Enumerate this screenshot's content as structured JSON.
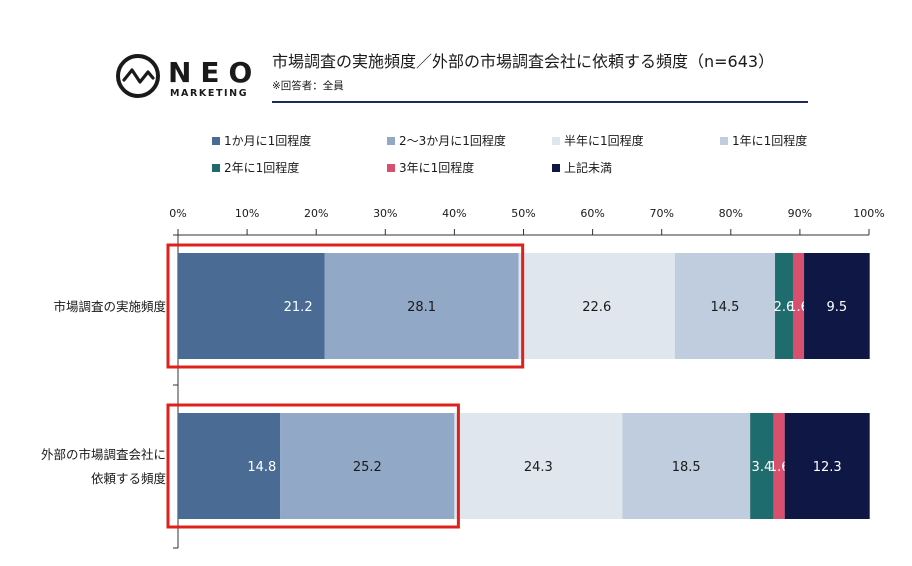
{
  "logo": {
    "word": "NEO",
    "sub": "MARKETING"
  },
  "header": {
    "title": "市場調査の実施頻度／外部の市場調査会社に依頼する頻度（n=643）",
    "note": "※回答者：全員"
  },
  "chart_data": {
    "type": "bar",
    "orientation": "horizontal",
    "stacked": true,
    "percent": true,
    "xlim": [
      0,
      100
    ],
    "ticks": [
      "0%",
      "10%",
      "20%",
      "30%",
      "40%",
      "50%",
      "60%",
      "70%",
      "80%",
      "90%",
      "100%"
    ],
    "legend_position": "top",
    "categories": [
      [
        "市場調査の実施頻度"
      ],
      [
        "外部の市場調査会社に",
        "依頼する頻度"
      ]
    ],
    "series": [
      {
        "name": "1か月に1回程度",
        "color": "#4a6b94",
        "label_color": "#ffffff",
        "values": [
          21.2,
          14.8
        ],
        "labels": [
          "21.2",
          "14.8"
        ]
      },
      {
        "name": "2〜3か月に1回程度",
        "color": "#91a8c7",
        "label_color": "#1a1a1a",
        "values": [
          28.1,
          25.2
        ],
        "labels": [
          "28.1",
          "25.2"
        ]
      },
      {
        "name": "半年に1回程度",
        "color": "#dfe6ee",
        "label_color": "#1a1a1a",
        "values": [
          22.6,
          24.3
        ],
        "labels": [
          "22.6",
          "24.3"
        ]
      },
      {
        "name": "1年に1回程度",
        "color": "#bfcddf",
        "label_color": "#1a1a1a",
        "values": [
          14.5,
          18.5
        ],
        "labels": [
          "14.5",
          "18.5"
        ]
      },
      {
        "name": "2年に1回程度",
        "color": "#1f6c6e",
        "label_color": "#ffffff",
        "values": [
          2.6,
          3.4
        ],
        "labels": [
          "2.6",
          "3.4"
        ]
      },
      {
        "name": "3年に1回程度",
        "color": "#d9506e",
        "label_color": "#ffffff",
        "values": [
          1.6,
          1.6
        ],
        "labels": [
          "1.6",
          "1.6"
        ]
      },
      {
        "name": "上記未満",
        "color": "#0f1744",
        "label_color": "#ffffff",
        "values": [
          9.5,
          12.3
        ],
        "labels": [
          "9.5",
          "12.3"
        ]
      }
    ],
    "highlights": [
      {
        "category_index": 0,
        "series": [
          0,
          1
        ]
      },
      {
        "category_index": 1,
        "series": [
          0,
          1
        ]
      }
    ],
    "highlight_color": "#e0201b"
  }
}
